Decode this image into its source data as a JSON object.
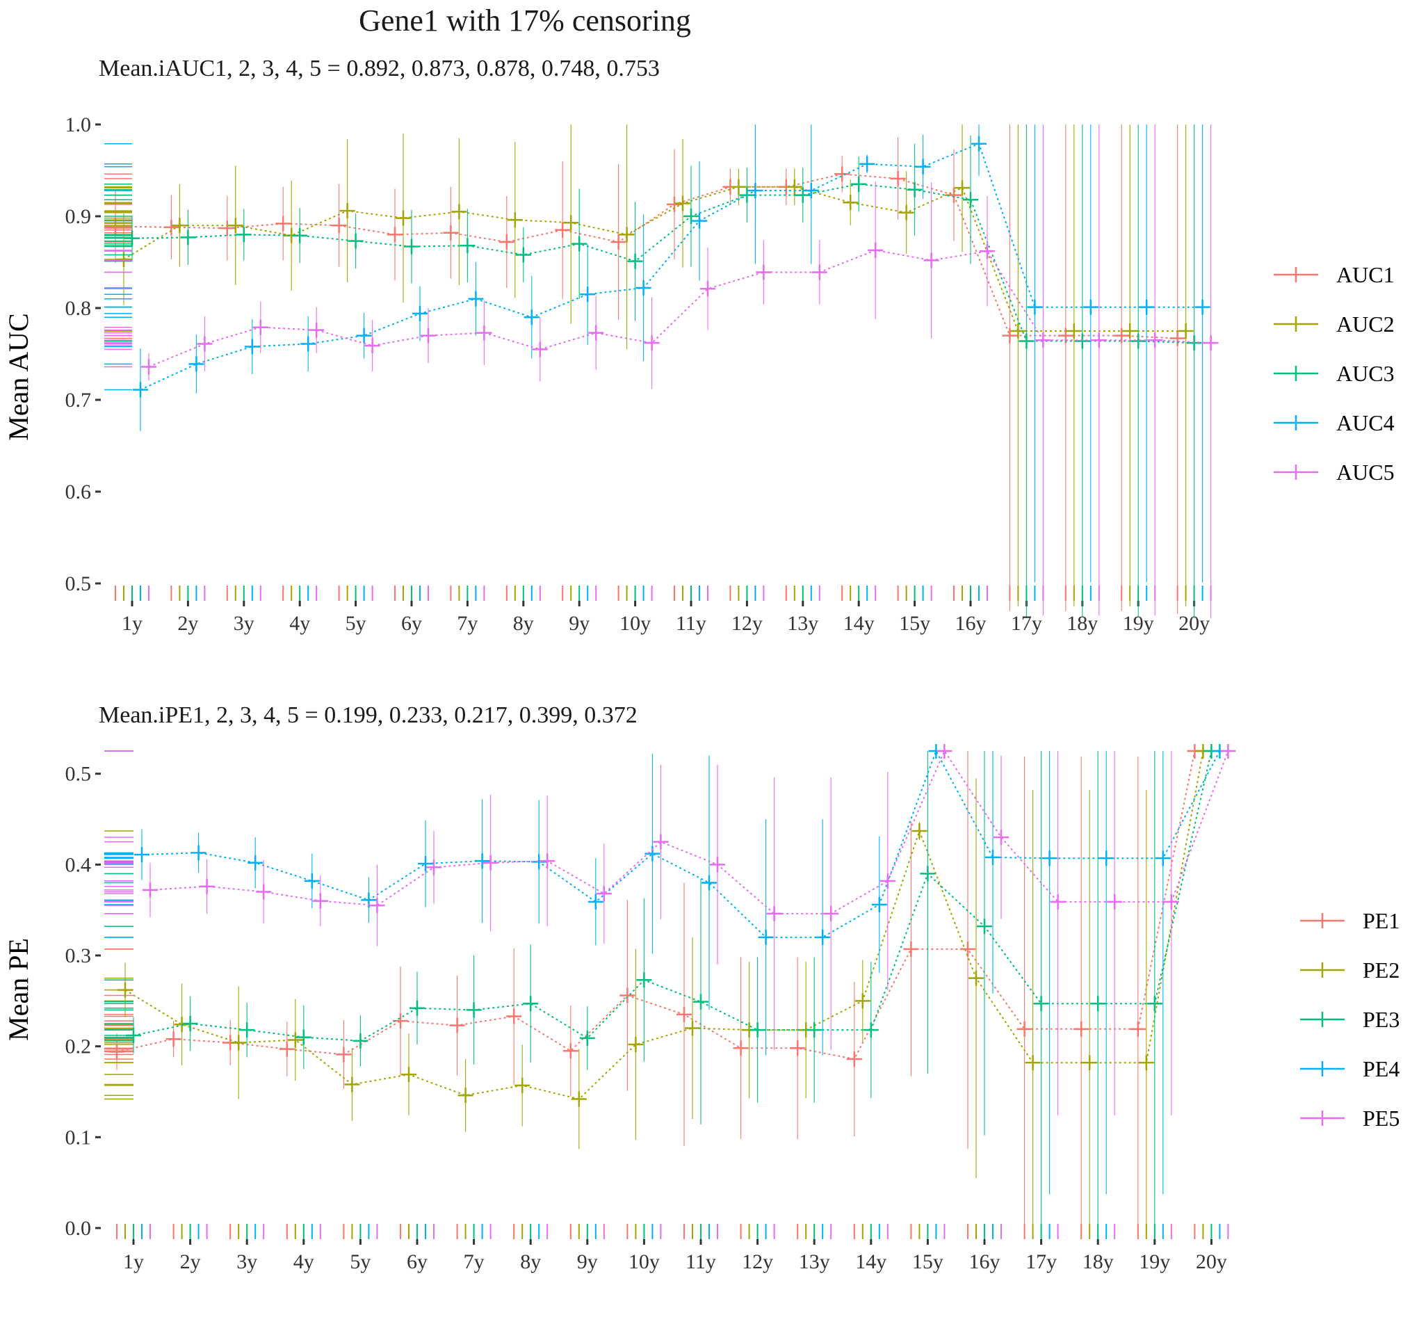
{
  "title": "Gene1 with 17% censoring",
  "chart_data": [
    {
      "type": "line",
      "id": "auc",
      "subtitle": "Mean.iAUC1, 2, 3, 4, 5 =  0.892, 0.873, 0.878, 0.748, 0.753",
      "xlabel": "",
      "ylabel": "Mean AUC",
      "ylim": [
        0.45,
        1.0
      ],
      "yticks": [
        0.5,
        0.6,
        0.7,
        0.8,
        0.9,
        1.0
      ],
      "ytick_labels": [
        "0.5",
        "0.6",
        "0.7",
        "0.8",
        "0.9",
        "1.0"
      ],
      "categories": [
        "1y",
        "2y",
        "3y",
        "4y",
        "5y",
        "6y",
        "7y",
        "8y",
        "9y",
        "10y",
        "11y",
        "12y",
        "13y",
        "14y",
        "15y",
        "16y",
        "17y",
        "18y",
        "19y",
        "20y"
      ],
      "grid": false,
      "legend_position": "right",
      "series": [
        {
          "name": "AUC1",
          "color": "#F8766D",
          "values": [
            0.889,
            0.888,
            0.887,
            0.892,
            0.89,
            0.88,
            0.882,
            0.872,
            0.885,
            0.872,
            0.913,
            0.932,
            0.932,
            0.946,
            0.941,
            0.923,
            0.77,
            0.77,
            0.77,
            0.767
          ],
          "err": [
            0.04,
            0.035,
            0.035,
            0.04,
            0.045,
            0.05,
            0.05,
            0.05,
            0.075,
            0.085,
            0.06,
            0.02,
            0.02,
            0.02,
            0.045,
            0.05,
            0.3,
            0.3,
            0.3,
            0.3
          ]
        },
        {
          "name": "AUC2",
          "color": "#A3A500",
          "values": [
            0.853,
            0.89,
            0.89,
            0.879,
            0.906,
            0.898,
            0.905,
            0.896,
            0.893,
            0.88,
            0.914,
            0.932,
            0.932,
            0.915,
            0.904,
            0.931,
            0.775,
            0.775,
            0.775,
            0.775
          ],
          "err": [
            0.05,
            0.045,
            0.065,
            0.06,
            0.078,
            0.092,
            0.08,
            0.085,
            0.11,
            0.125,
            0.07,
            0.02,
            0.02,
            0.025,
            0.045,
            0.07,
            0.3,
            0.3,
            0.3,
            0.3
          ]
        },
        {
          "name": "AUC3",
          "color": "#00BF7D",
          "values": [
            0.876,
            0.877,
            0.88,
            0.879,
            0.873,
            0.867,
            0.868,
            0.858,
            0.87,
            0.851,
            0.9,
            0.923,
            0.923,
            0.935,
            0.929,
            0.918,
            0.764,
            0.764,
            0.764,
            0.762
          ],
          "err": [
            0.025,
            0.03,
            0.028,
            0.03,
            0.03,
            0.04,
            0.04,
            0.03,
            0.06,
            0.065,
            0.055,
            0.03,
            0.03,
            0.03,
            0.05,
            0.07,
            0.3,
            0.3,
            0.3,
            0.3
          ]
        },
        {
          "name": "AUC4",
          "color": "#00B0F6",
          "values": [
            0.711,
            0.739,
            0.758,
            0.761,
            0.77,
            0.794,
            0.81,
            0.79,
            0.815,
            0.822,
            0.895,
            0.928,
            0.928,
            0.957,
            0.954,
            0.979,
            0.801,
            0.801,
            0.801,
            0.801
          ],
          "err": [
            0.045,
            0.032,
            0.03,
            0.03,
            0.025,
            0.03,
            0.04,
            0.045,
            0.055,
            0.08,
            0.065,
            0.08,
            0.08,
            0.01,
            0.035,
            0.035,
            0.3,
            0.3,
            0.3,
            0.3
          ]
        },
        {
          "name": "AUC5",
          "color": "#E76BF3",
          "values": [
            0.736,
            0.761,
            0.779,
            0.776,
            0.759,
            0.77,
            0.773,
            0.755,
            0.773,
            0.762,
            0.821,
            0.839,
            0.839,
            0.863,
            0.852,
            0.862,
            0.765,
            0.765,
            0.765,
            0.762
          ],
          "err": [
            0.015,
            0.03,
            0.028,
            0.025,
            0.028,
            0.03,
            0.035,
            0.035,
            0.04,
            0.05,
            0.045,
            0.035,
            0.035,
            0.075,
            0.085,
            0.06,
            0.3,
            0.3,
            0.3,
            0.3
          ]
        }
      ]
    },
    {
      "type": "line",
      "id": "pe",
      "subtitle": "Mean.iPE1, 2, 3, 4, 5 =  0.199, 0.233, 0.217, 0.399, 0.372",
      "xlabel": "",
      "ylabel": "Mean PE",
      "ylim": [
        0.0,
        0.525
      ],
      "yticks": [
        0.0,
        0.1,
        0.2,
        0.3,
        0.4,
        0.5
      ],
      "ytick_labels": [
        "0.0",
        "0.1",
        "0.2",
        "0.3",
        "0.4",
        "0.5"
      ],
      "categories": [
        "1y",
        "2y",
        "3y",
        "4y",
        "5y",
        "6y",
        "7y",
        "8y",
        "9y",
        "10y",
        "11y",
        "12y",
        "13y",
        "14y",
        "15y",
        "16y",
        "17y",
        "18y",
        "19y",
        "20y"
      ],
      "grid": false,
      "legend_position": "right",
      "series": [
        {
          "name": "PE1",
          "color": "#F8766D",
          "values": [
            0.194,
            0.208,
            0.204,
            0.197,
            0.191,
            0.228,
            0.223,
            0.233,
            0.195,
            0.256,
            0.235,
            0.198,
            0.198,
            0.186,
            0.307,
            0.307,
            0.219,
            0.219,
            0.219,
            0.525
          ],
          "err": [
            0.02,
            0.02,
            0.025,
            0.03,
            0.038,
            0.06,
            0.055,
            0.075,
            0.05,
            0.105,
            0.145,
            0.1,
            0.1,
            0.085,
            0.14,
            0.22,
            0.3,
            0.3,
            0.3,
            0.0
          ]
        },
        {
          "name": "PE2",
          "color": "#A3A500",
          "values": [
            0.262,
            0.224,
            0.204,
            0.207,
            0.158,
            0.169,
            0.146,
            0.157,
            0.142,
            0.202,
            0.22,
            0.218,
            0.218,
            0.25,
            0.437,
            0.275,
            0.182,
            0.182,
            0.182,
            0.525
          ],
          "err": [
            0.03,
            0.045,
            0.062,
            0.045,
            0.04,
            0.045,
            0.04,
            0.045,
            0.055,
            0.105,
            0.1,
            0.075,
            0.075,
            0.045,
            0.01,
            0.22,
            0.3,
            0.3,
            0.3,
            0.0
          ]
        },
        {
          "name": "PE3",
          "color": "#00BF7D",
          "values": [
            0.212,
            0.225,
            0.218,
            0.21,
            0.206,
            0.242,
            0.24,
            0.247,
            0.209,
            0.273,
            0.249,
            0.218,
            0.218,
            0.218,
            0.39,
            0.332,
            0.247,
            0.247,
            0.247,
            0.525
          ],
          "err": [
            0.02,
            0.03,
            0.03,
            0.035,
            0.028,
            0.04,
            0.06,
            0.065,
            0.035,
            0.09,
            0.135,
            0.08,
            0.08,
            0.075,
            0.22,
            0.23,
            0.3,
            0.3,
            0.3,
            0.0
          ]
        },
        {
          "name": "PE4",
          "color": "#00B0F6",
          "values": [
            0.411,
            0.413,
            0.402,
            0.382,
            0.361,
            0.401,
            0.404,
            0.403,
            0.359,
            0.412,
            0.38,
            0.32,
            0.32,
            0.356,
            0.525,
            0.408,
            0.407,
            0.407,
            0.407,
            0.525
          ],
          "err": [
            0.028,
            0.022,
            0.028,
            0.03,
            0.025,
            0.048,
            0.068,
            0.068,
            0.048,
            0.11,
            0.14,
            0.13,
            0.13,
            0.075,
            0.0,
            0.15,
            0.37,
            0.37,
            0.37,
            0.0
          ]
        },
        {
          "name": "PE5",
          "color": "#E76BF3",
          "values": [
            0.372,
            0.376,
            0.37,
            0.36,
            0.355,
            0.397,
            0.402,
            0.404,
            0.368,
            0.425,
            0.4,
            0.346,
            0.346,
            0.382,
            0.525,
            0.43,
            0.359,
            0.359,
            0.359,
            0.525
          ],
          "err": [
            0.03,
            0.03,
            0.035,
            0.028,
            0.045,
            0.04,
            0.075,
            0.072,
            0.055,
            0.085,
            0.11,
            0.15,
            0.15,
            0.12,
            0.0,
            0.09,
            0.235,
            0.235,
            0.235,
            0.0
          ]
        }
      ]
    }
  ]
}
